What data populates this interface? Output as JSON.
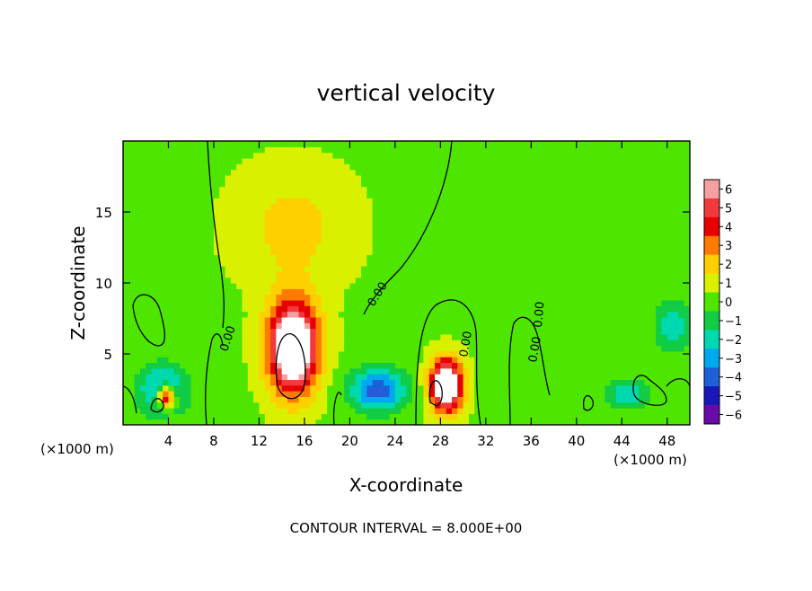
{
  "chart_data": {
    "type": "heatmap",
    "title": "vertical velocity",
    "xlabel": "X-coordinate",
    "ylabel": "Z-coordinate",
    "x_unit_left": "(×1000 m)",
    "x_unit_right": "(×1000 m)",
    "xlim": [
      0,
      50
    ],
    "ylim": [
      0,
      20
    ],
    "x_ticks": [
      4,
      8,
      12,
      16,
      20,
      24,
      28,
      32,
      36,
      40,
      44,
      48
    ],
    "y_ticks": [
      5,
      10,
      15
    ],
    "colorbar": {
      "levels": [
        6,
        5,
        4,
        3,
        2,
        1,
        0,
        -1,
        -2,
        -3,
        -4,
        -5,
        -6
      ],
      "colors": [
        "#f5a0a0",
        "#f03a3a",
        "#e60000",
        "#ff7a00",
        "#ffd000",
        "#d9f000",
        "#4ee600",
        "#11cc44",
        "#00d8b0",
        "#00a8f0",
        "#1f5fd8",
        "#1818b8",
        "#6a0aa8"
      ]
    },
    "contour_labels": [
      "0.00",
      "0.00",
      "0.00",
      "0.00",
      "0.00"
    ],
    "footer": "CONTOUR INTERVAL = 8.000E+00",
    "features": [
      {
        "name": "updraft",
        "x": 15,
        "z": 5.5,
        "sx": 2.2,
        "sz": 3.2,
        "value": 9
      },
      {
        "name": "updraft",
        "x": 28.5,
        "z": 2.8,
        "sx": 1.4,
        "sz": 1.8,
        "value": 9
      },
      {
        "name": "updraft",
        "x": 3.8,
        "z": 2.0,
        "sx": 0.8,
        "sz": 0.8,
        "value": 7
      },
      {
        "name": "upper-updraft",
        "x": 15,
        "z": 14,
        "sx": 5,
        "sz": 4,
        "value": 1.6
      },
      {
        "name": "downdraft",
        "x": 22.5,
        "z": 2.5,
        "sx": 2.5,
        "sz": 1.5,
        "value": -4.5
      },
      {
        "name": "downdraft",
        "x": 3.5,
        "z": 2.5,
        "sx": 2.2,
        "sz": 1.8,
        "value": -3.5
      },
      {
        "name": "downdraft",
        "x": 48.5,
        "z": 7,
        "sx": 1.5,
        "sz": 1.8,
        "value": -2.5
      },
      {
        "name": "downdraft",
        "x": 44.5,
        "z": 2.2,
        "sx": 2,
        "sz": 1,
        "value": -2.5
      }
    ]
  }
}
